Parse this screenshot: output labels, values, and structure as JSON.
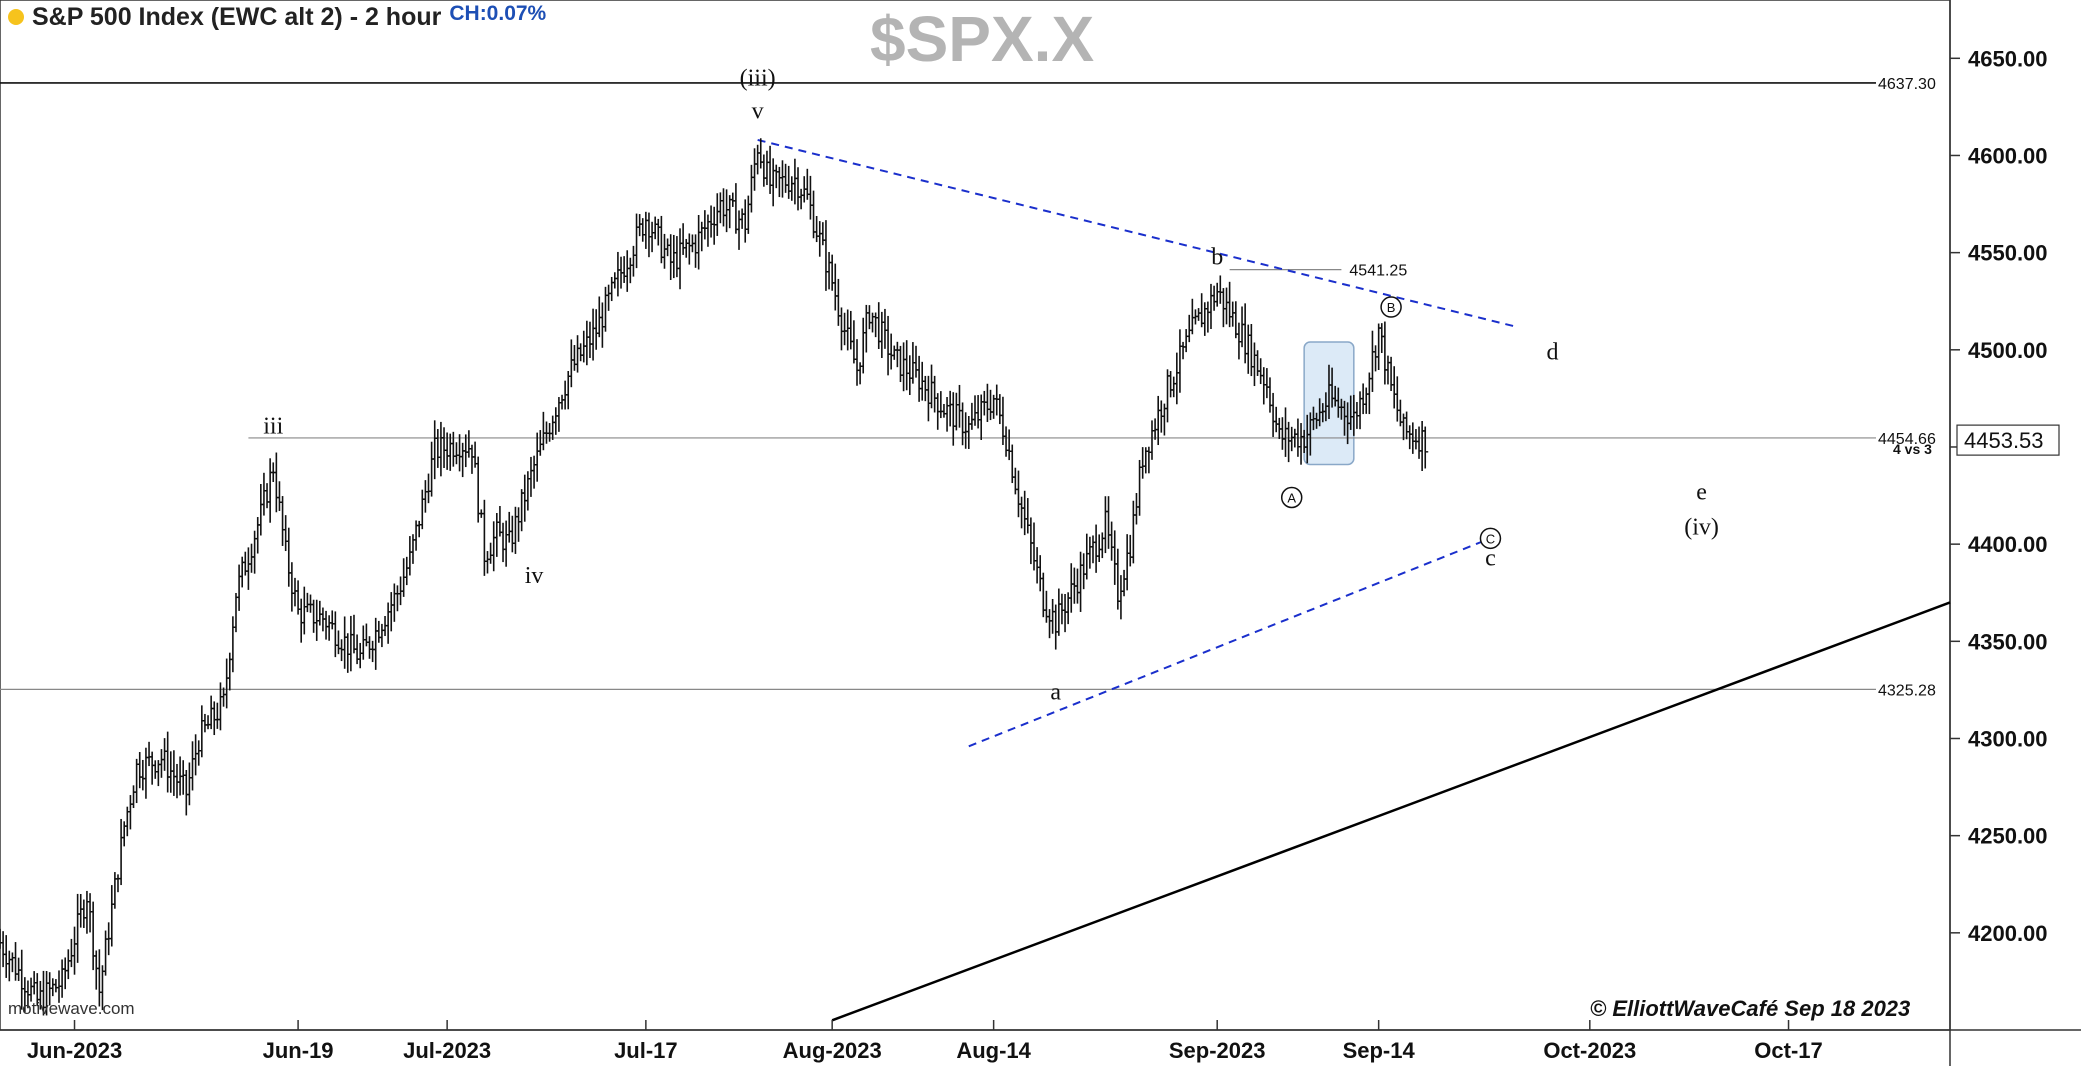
{
  "header": {
    "title": "S&P 500 Index (EWC alt 2) - 2 hour",
    "change": "CH:0.07%",
    "watermark": "$SPX.X",
    "source": "motivewave.com",
    "copyright": "© ElliottWaveCafé Sep 18 2023"
  },
  "colors": {
    "bars": "#111111",
    "channel": "#1a2fcc",
    "level_lines": "#888888",
    "box_fill": "#dceaf7",
    "box_stroke": "#8aa8c8",
    "dot": "#f6c31d",
    "change_text": "#1d4fb5"
  },
  "chart_data": {
    "type": "ohlc",
    "y_axis": {
      "ylim": [
        4150,
        4680
      ],
      "ticks": [
        "4200.00",
        "4250.00",
        "4300.00",
        "4350.00",
        "4400.00",
        "4450.00",
        "4500.00",
        "4550.00",
        "4600.00",
        "4650.00"
      ],
      "tick_values": [
        4200,
        4250,
        4300,
        4350,
        4400,
        4450,
        4500,
        4550,
        4600,
        4650
      ],
      "last_price": "4453.53"
    },
    "x_axis": {
      "date_range": [
        "2023-05-26",
        "2023-10-30"
      ],
      "labels": [
        {
          "date": "2023-06-01",
          "text": "Jun-2023"
        },
        {
          "date": "2023-06-19",
          "text": "Jun-19"
        },
        {
          "date": "2023-07-01",
          "text": "Jul-2023"
        },
        {
          "date": "2023-07-17",
          "text": "Jul-17"
        },
        {
          "date": "2023-08-01",
          "text": "Aug-2023"
        },
        {
          "date": "2023-08-14",
          "text": "Aug-14"
        },
        {
          "date": "2023-09-01",
          "text": "Sep-2023"
        },
        {
          "date": "2023-09-14",
          "text": "Sep-14"
        },
        {
          "date": "2023-10-01",
          "text": "Oct-2023"
        },
        {
          "date": "2023-10-17",
          "text": "Oct-17"
        }
      ]
    },
    "price_path": [
      [
        "2023-05-26",
        4195
      ],
      [
        "2023-05-29",
        4165
      ],
      [
        "2023-05-31",
        4175
      ],
      [
        "2023-06-02",
        4220
      ],
      [
        "2023-06-03",
        4170
      ],
      [
        "2023-06-05",
        4255
      ],
      [
        "2023-06-06",
        4285
      ],
      [
        "2023-06-08",
        4290
      ],
      [
        "2023-06-10",
        4272
      ],
      [
        "2023-06-11",
        4300
      ],
      [
        "2023-06-13",
        4318
      ],
      [
        "2023-06-14",
        4375
      ],
      [
        "2023-06-16",
        4415
      ],
      [
        "2023-06-17",
        4440
      ],
      [
        "2023-06-18",
        4395
      ],
      [
        "2023-06-19",
        4365
      ],
      [
        "2023-06-21",
        4362
      ],
      [
        "2023-06-23",
        4348
      ],
      [
        "2023-06-24",
        4342
      ],
      [
        "2023-06-25",
        4352
      ],
      [
        "2023-06-27",
        4375
      ],
      [
        "2023-06-28",
        4392
      ],
      [
        "2023-06-30",
        4448
      ],
      [
        "2023-07-02",
        4452
      ],
      [
        "2023-07-03",
        4450
      ],
      [
        "2023-07-04",
        4395
      ],
      [
        "2023-07-05",
        4405
      ],
      [
        "2023-07-06",
        4400
      ],
      [
        "2023-07-07",
        4420
      ],
      [
        "2023-07-08",
        4440
      ],
      [
        "2023-07-10",
        4475
      ],
      [
        "2023-07-11",
        4490
      ],
      [
        "2023-07-13",
        4510
      ],
      [
        "2023-07-15",
        4540
      ],
      [
        "2023-07-17",
        4568
      ],
      [
        "2023-07-19",
        4545
      ],
      [
        "2023-07-21",
        4555
      ],
      [
        "2023-07-23",
        4575
      ],
      [
        "2023-07-25",
        4565
      ],
      [
        "2023-07-26",
        4605
      ],
      [
        "2023-07-27",
        4585
      ],
      [
        "2023-07-29",
        4588
      ],
      [
        "2023-07-30",
        4578
      ],
      [
        "2023-08-01",
        4535
      ],
      [
        "2023-08-02",
        4510
      ],
      [
        "2023-08-03",
        4490
      ],
      [
        "2023-08-04",
        4520
      ],
      [
        "2023-08-06",
        4495
      ],
      [
        "2023-08-08",
        4485
      ],
      [
        "2023-08-10",
        4470
      ],
      [
        "2023-08-12",
        4460
      ],
      [
        "2023-08-14",
        4475
      ],
      [
        "2023-08-15",
        4455
      ],
      [
        "2023-08-16",
        4425
      ],
      [
        "2023-08-18",
        4372
      ],
      [
        "2023-08-19",
        4360
      ],
      [
        "2023-08-21",
        4385
      ],
      [
        "2023-08-23",
        4410
      ],
      [
        "2023-08-24",
        4375
      ],
      [
        "2023-08-25",
        4400
      ],
      [
        "2023-08-26",
        4445
      ],
      [
        "2023-08-28",
        4480
      ],
      [
        "2023-08-30",
        4510
      ],
      [
        "2023-09-01",
        4530
      ],
      [
        "2023-09-03",
        4508
      ],
      [
        "2023-09-05",
        4482
      ],
      [
        "2023-09-06",
        4455
      ],
      [
        "2023-09-08",
        4455
      ],
      [
        "2023-09-10",
        4475
      ],
      [
        "2023-09-12",
        4465
      ],
      [
        "2023-09-13",
        4482
      ],
      [
        "2023-09-14",
        4510
      ],
      [
        "2023-09-15",
        4480
      ],
      [
        "2023-09-16",
        4458
      ],
      [
        "2023-09-18",
        4453
      ]
    ],
    "levels": [
      {
        "value": 4637.3,
        "label": "4637.30",
        "from": "2023-05-26",
        "to": "2023-10-30",
        "color": "#111111"
      },
      {
        "value": 4454.66,
        "label": "4454.66",
        "from": "2023-06-15",
        "to": "2023-10-30",
        "color": "#888888"
      },
      {
        "value": 4325.28,
        "label": "4325.28",
        "from": "2023-05-26",
        "to": "2023-10-30",
        "color": "#888888"
      },
      {
        "value": 4541.25,
        "label": "4541.25",
        "from": "2023-09-02",
        "to": "2023-09-11",
        "color": "#888888"
      }
    ],
    "level_note": "4 vs 3",
    "trendlines": [
      {
        "from": [
          "2023-07-26",
          4608
        ],
        "to": [
          "2023-09-25",
          4512
        ],
        "style": "dashed",
        "color": "#1a2fcc"
      },
      {
        "from": [
          "2023-08-12",
          4296
        ],
        "to": [
          "2023-09-23",
          4403
        ],
        "style": "dashed",
        "color": "#1a2fcc"
      },
      {
        "from": [
          "2023-08-01",
          4155
        ],
        "to": [
          "2023-10-30",
          4370
        ],
        "style": "solid",
        "color": "#000000"
      }
    ],
    "highlight_box": {
      "from": "2023-09-08",
      "to": "2023-09-12",
      "top": 4504,
      "bottom": 4441
    },
    "wave_labels": [
      {
        "text": "(iii)",
        "date": "2023-07-26",
        "price": 4636
      },
      {
        "text": "v",
        "date": "2023-07-26",
        "price": 4619
      },
      {
        "text": "iii",
        "date": "2023-06-17",
        "price": 4457
      },
      {
        "text": "iv",
        "date": "2023-07-08",
        "price": 4380
      },
      {
        "text": "a",
        "date": "2023-08-19",
        "price": 4320
      },
      {
        "text": "b",
        "date": "2023-09-01",
        "price": 4544
      },
      {
        "text": "d",
        "date": "2023-09-28",
        "price": 4495
      },
      {
        "text": "e",
        "date": "2023-10-10",
        "price": 4423
      },
      {
        "text": "(iv)",
        "date": "2023-10-10",
        "price": 4405
      },
      {
        "text": "c",
        "date": "2023-09-23",
        "price": 4389
      }
    ],
    "circled_labels": [
      {
        "text": "A",
        "date": "2023-09-07",
        "price": 4424
      },
      {
        "text": "B",
        "date": "2023-09-15",
        "price": 4522
      },
      {
        "text": "C",
        "date": "2023-09-23",
        "price": 4403
      }
    ]
  }
}
